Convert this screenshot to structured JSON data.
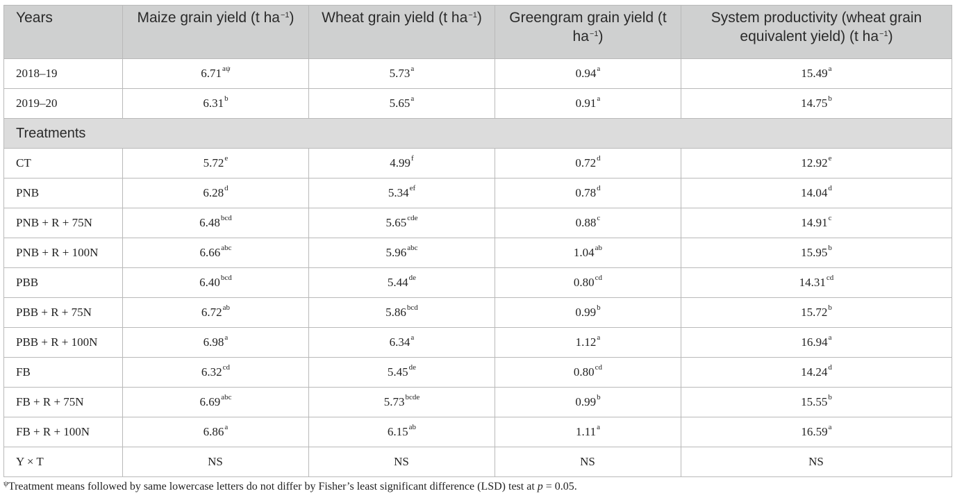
{
  "header": {
    "c0": "Years",
    "c1": "Maize grain yield (t ha",
    "c2": "Wheat grain yield (t ha",
    "c3": "Greengram grain yield (t ha",
    "c4": "System productivity (wheat grain equivalent yield) (t ha",
    "unit_exp": "−1",
    "unit_close": ")"
  },
  "years_rows": [
    {
      "label": "2018–19",
      "cells": [
        [
          "6.71",
          "aψ"
        ],
        [
          "5.73",
          "a"
        ],
        [
          "0.94",
          "a"
        ],
        [
          "15.49",
          "a"
        ]
      ]
    },
    {
      "label": "2019–20",
      "cells": [
        [
          "6.31",
          "b"
        ],
        [
          "5.65",
          "a"
        ],
        [
          "0.91",
          "a"
        ],
        [
          "14.75",
          "b"
        ]
      ]
    }
  ],
  "section_label": "Treatments",
  "treatment_rows": [
    {
      "label": "CT",
      "cells": [
        [
          "5.72",
          "e"
        ],
        [
          "4.99",
          "f"
        ],
        [
          "0.72",
          "d"
        ],
        [
          "12.92",
          "e"
        ]
      ]
    },
    {
      "label": "PNB",
      "cells": [
        [
          "6.28",
          "d"
        ],
        [
          "5.34",
          "ef"
        ],
        [
          "0.78",
          "d"
        ],
        [
          "14.04",
          "d"
        ]
      ]
    },
    {
      "label": "PNB + R + 75N",
      "cells": [
        [
          "6.48",
          "bcd"
        ],
        [
          "5.65",
          "cde"
        ],
        [
          "0.88",
          "c"
        ],
        [
          "14.91",
          "c"
        ]
      ]
    },
    {
      "label": "PNB + R + 100N",
      "cells": [
        [
          "6.66",
          "abc"
        ],
        [
          "5.96",
          "abc"
        ],
        [
          "1.04",
          "ab"
        ],
        [
          "15.95",
          "b"
        ]
      ]
    },
    {
      "label": "PBB",
      "cells": [
        [
          "6.40",
          "bcd"
        ],
        [
          "5.44",
          "de"
        ],
        [
          "0.80",
          "cd"
        ],
        [
          "14.31",
          "cd"
        ]
      ]
    },
    {
      "label": "PBB + R + 75N",
      "cells": [
        [
          "6.72",
          "ab"
        ],
        [
          "5.86",
          "bcd"
        ],
        [
          "0.99",
          "b"
        ],
        [
          "15.72",
          "b"
        ]
      ]
    },
    {
      "label": "PBB + R + 100N",
      "cells": [
        [
          "6.98",
          "a"
        ],
        [
          "6.34",
          "a"
        ],
        [
          "1.12",
          "a"
        ],
        [
          "16.94",
          "a"
        ]
      ]
    },
    {
      "label": "FB",
      "cells": [
        [
          "6.32",
          "cd"
        ],
        [
          "5.45",
          "de"
        ],
        [
          "0.80",
          "cd"
        ],
        [
          "14.24",
          "d"
        ]
      ]
    },
    {
      "label": "FB + R + 75N",
      "cells": [
        [
          "6.69",
          "abc"
        ],
        [
          "5.73",
          "bcde"
        ],
        [
          "0.99",
          "b"
        ],
        [
          "15.55",
          "b"
        ]
      ]
    },
    {
      "label": "FB + R + 100N",
      "cells": [
        [
          "6.86",
          "a"
        ],
        [
          "6.15",
          "ab"
        ],
        [
          "1.11",
          "a"
        ],
        [
          "16.59",
          "a"
        ]
      ]
    },
    {
      "label": "Y × T",
      "cells": [
        [
          "NS",
          ""
        ],
        [
          "NS",
          ""
        ],
        [
          "NS",
          ""
        ],
        [
          "NS",
          ""
        ]
      ]
    }
  ],
  "footnote": {
    "symbol": "ψ",
    "text": "Treatment means followed by same lowercase letters do not differ by Fisher’s least significant difference (LSD) test at ",
    "p": "p",
    "tail": " = 0.05."
  }
}
